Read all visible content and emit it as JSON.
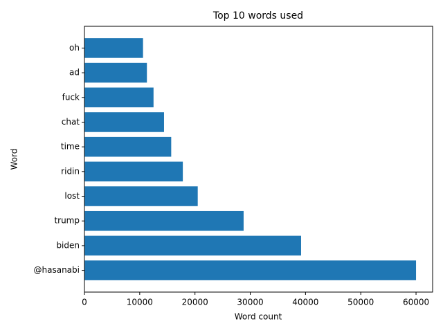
{
  "chart_data": {
    "type": "barh",
    "title": "Top 10 words used",
    "x_label": "Word count",
    "y_label": "Word",
    "categories": [
      "@hasanabi",
      "biden",
      "trump",
      "lost",
      "ridin",
      "time",
      "chat",
      "fuck",
      "ad",
      "oh"
    ],
    "values": [
      60000,
      39200,
      28800,
      20500,
      17800,
      15700,
      14400,
      12500,
      11300,
      10600
    ],
    "color": "#1f77b4",
    "xlim": [
      0,
      63000
    ],
    "xticks": [
      0,
      10000,
      20000,
      30000,
      40000,
      50000,
      60000
    ]
  }
}
